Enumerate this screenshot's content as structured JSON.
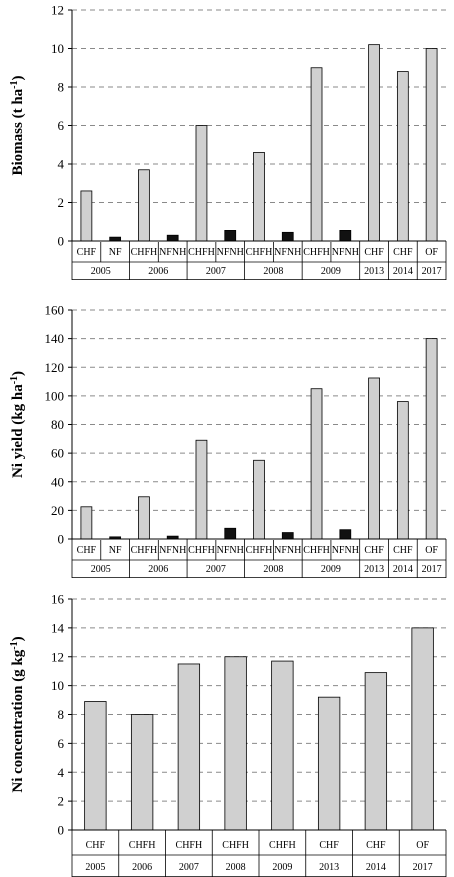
{
  "chart_data": [
    {
      "type": "bar",
      "ylabel": "Biomass (t ha",
      "ylabel_sup": "-1",
      "ylabel_close": ")",
      "ylim": [
        0,
        12
      ],
      "yticks": [
        0,
        2,
        4,
        6,
        8,
        10,
        12
      ],
      "grid": "horizontal dashed",
      "groups": [
        {
          "year": "2005",
          "bars": [
            {
              "label": "CHF",
              "value": 2.6,
              "fill": "#d0d0d0"
            },
            {
              "label": "NF",
              "value": 0.2,
              "fill": "#111111"
            }
          ]
        },
        {
          "year": "2006",
          "bars": [
            {
              "label": "CHFH",
              "value": 3.7,
              "fill": "#d0d0d0"
            },
            {
              "label": "NFNH",
              "value": 0.3,
              "fill": "#111111"
            }
          ]
        },
        {
          "year": "2007",
          "bars": [
            {
              "label": "CHFH",
              "value": 6.0,
              "fill": "#d0d0d0"
            },
            {
              "label": "NFNH",
              "value": 0.55,
              "fill": "#111111"
            }
          ]
        },
        {
          "year": "2008",
          "bars": [
            {
              "label": "CHFH",
              "value": 4.6,
              "fill": "#d0d0d0"
            },
            {
              "label": "NFNH",
              "value": 0.45,
              "fill": "#111111"
            }
          ]
        },
        {
          "year": "2009",
          "bars": [
            {
              "label": "CHFH",
              "value": 9.0,
              "fill": "#d0d0d0"
            },
            {
              "label": "NFNH",
              "value": 0.55,
              "fill": "#111111"
            }
          ]
        },
        {
          "year": "2013",
          "bars": [
            {
              "label": "CHF",
              "value": 10.2,
              "fill": "#d0d0d0"
            }
          ]
        },
        {
          "year": "2014",
          "bars": [
            {
              "label": "CHF",
              "value": 8.8,
              "fill": "#d0d0d0"
            }
          ]
        },
        {
          "year": "2017",
          "bars": [
            {
              "label": "OF",
              "value": 10.0,
              "fill": "#d0d0d0"
            }
          ]
        }
      ]
    },
    {
      "type": "bar",
      "ylabel": "Ni yield (kg ha",
      "ylabel_sup": "-1",
      "ylabel_close": ")",
      "ylim": [
        0,
        160
      ],
      "yticks": [
        0,
        20,
        40,
        60,
        80,
        100,
        120,
        140,
        160
      ],
      "grid": "horizontal dashed",
      "groups": [
        {
          "year": "2005",
          "bars": [
            {
              "label": "CHF",
              "value": 22.5,
              "fill": "#d0d0d0"
            },
            {
              "label": "NF",
              "value": 1.5,
              "fill": "#111111"
            }
          ]
        },
        {
          "year": "2006",
          "bars": [
            {
              "label": "CHFH",
              "value": 29.5,
              "fill": "#d0d0d0"
            },
            {
              "label": "NFNH",
              "value": 2,
              "fill": "#111111"
            }
          ]
        },
        {
          "year": "2007",
          "bars": [
            {
              "label": "CHFH",
              "value": 69,
              "fill": "#d0d0d0"
            },
            {
              "label": "NFNH",
              "value": 7.5,
              "fill": "#111111"
            }
          ]
        },
        {
          "year": "2008",
          "bars": [
            {
              "label": "CHFH",
              "value": 55,
              "fill": "#d0d0d0"
            },
            {
              "label": "NFNH",
              "value": 4.5,
              "fill": "#111111"
            }
          ]
        },
        {
          "year": "2009",
          "bars": [
            {
              "label": "CHFH",
              "value": 105,
              "fill": "#d0d0d0"
            },
            {
              "label": "NFNH",
              "value": 6.5,
              "fill": "#111111"
            }
          ]
        },
        {
          "year": "2013",
          "bars": [
            {
              "label": "CHF",
              "value": 112.5,
              "fill": "#d0d0d0"
            }
          ]
        },
        {
          "year": "2014",
          "bars": [
            {
              "label": "CHF",
              "value": 96,
              "fill": "#d0d0d0"
            }
          ]
        },
        {
          "year": "2017",
          "bars": [
            {
              "label": "OF",
              "value": 140,
              "fill": "#d0d0d0"
            }
          ]
        }
      ]
    },
    {
      "type": "bar",
      "ylabel": "Ni concentration (g kg",
      "ylabel_sup": "-1",
      "ylabel_close": ")",
      "ylim": [
        0,
        16
      ],
      "yticks": [
        0,
        2,
        4,
        6,
        8,
        10,
        12,
        14,
        16
      ],
      "grid": "horizontal dashed",
      "groups": [
        {
          "year": "2005",
          "bars": [
            {
              "label": "CHF",
              "value": 8.9,
              "fill": "#d0d0d0"
            }
          ]
        },
        {
          "year": "2006",
          "bars": [
            {
              "label": "CHFH",
              "value": 8.0,
              "fill": "#d0d0d0"
            }
          ]
        },
        {
          "year": "2007",
          "bars": [
            {
              "label": "CHFH",
              "value": 11.5,
              "fill": "#d0d0d0"
            }
          ]
        },
        {
          "year": "2008",
          "bars": [
            {
              "label": "CHFH",
              "value": 12.0,
              "fill": "#d0d0d0"
            }
          ]
        },
        {
          "year": "2009",
          "bars": [
            {
              "label": "CHFH",
              "value": 11.7,
              "fill": "#d0d0d0"
            }
          ]
        },
        {
          "year": "2013",
          "bars": [
            {
              "label": "CHF",
              "value": 9.2,
              "fill": "#d0d0d0"
            }
          ]
        },
        {
          "year": "2014",
          "bars": [
            {
              "label": "CHF",
              "value": 10.9,
              "fill": "#d0d0d0"
            }
          ]
        },
        {
          "year": "2017",
          "bars": [
            {
              "label": "OF",
              "value": 14.0,
              "fill": "#d0d0d0"
            }
          ]
        }
      ]
    }
  ]
}
